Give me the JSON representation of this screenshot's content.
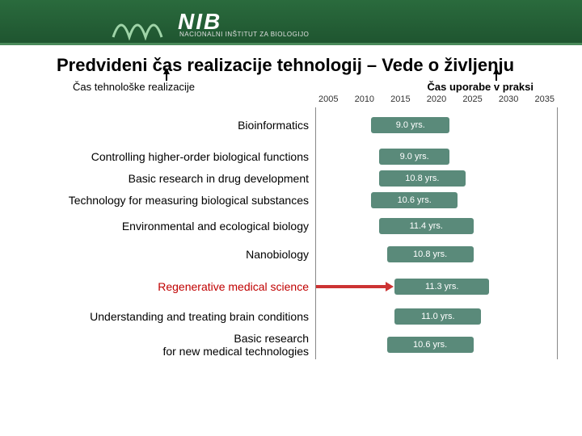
{
  "header": {
    "logo": "NIB",
    "subtitle": "NACIONALNI INŠTITUT ZA BIOLOGIJO",
    "bg_color": "#2a6b3d"
  },
  "title": "Predvideni čas realizacije tehnologij – Vede o življenju",
  "subtitle_left": "Čas tehnološke realizacije",
  "subtitle_right": "Čas uporabe v praksi",
  "years": [
    "2005",
    "2010",
    "2015",
    "2020",
    "2025",
    "2030",
    "2035"
  ],
  "year_range": [
    2005,
    2035
  ],
  "rows": [
    {
      "label": "Bioinformatics",
      "height": 44,
      "bar_start": 2012,
      "bar_end": 2022,
      "duration": "9.0 yrs.",
      "highlight": false
    },
    {
      "label": "Controlling higher-order biological functions",
      "height": 34,
      "bar_start": 2013,
      "bar_end": 2022,
      "duration": "9.0 yrs.",
      "highlight": false
    },
    {
      "label": "Basic research in drug development",
      "height": 20,
      "bar_start": 2013,
      "bar_end": 2024,
      "duration": "10.8 yrs.",
      "highlight": false
    },
    {
      "label": "Technology for measuring biological substances",
      "height": 34,
      "bar_start": 2012,
      "bar_end": 2023,
      "duration": "10.6 yrs.",
      "highlight": false
    },
    {
      "label": "Environmental and ecological biology",
      "height": 30,
      "bar_start": 2013,
      "bar_end": 2025,
      "duration": "11.4 yrs.",
      "highlight": false
    },
    {
      "label": "Nanobiology",
      "height": 40,
      "bar_start": 2014,
      "bar_end": 2025,
      "duration": "10.8 yrs.",
      "highlight": false
    },
    {
      "label": "Regenerative medical science",
      "height": 40,
      "bar_start": 2015,
      "bar_end": 2027,
      "duration": "11.3 yrs.",
      "highlight": true,
      "arrow": {
        "start": 2005,
        "end": 2014
      }
    },
    {
      "label": "Understanding and treating brain conditions",
      "height": 34,
      "bar_start": 2015,
      "bar_end": 2026,
      "duration": "11.0 yrs.",
      "highlight": false
    },
    {
      "label": "Basic research\n for new medical technologies",
      "height": 36,
      "bar_start": 2014,
      "bar_end": 2025,
      "duration": "10.6 yrs.",
      "highlight": false
    }
  ],
  "bar_color": "#5a8a7a",
  "bar_text_color": "#ffffff",
  "arrow_color": "#cc3333",
  "axis_font_size": 11,
  "label_font_size": 14,
  "bar_font_size": 11,
  "title_color": "#000000",
  "highlight_color": "#c00000"
}
